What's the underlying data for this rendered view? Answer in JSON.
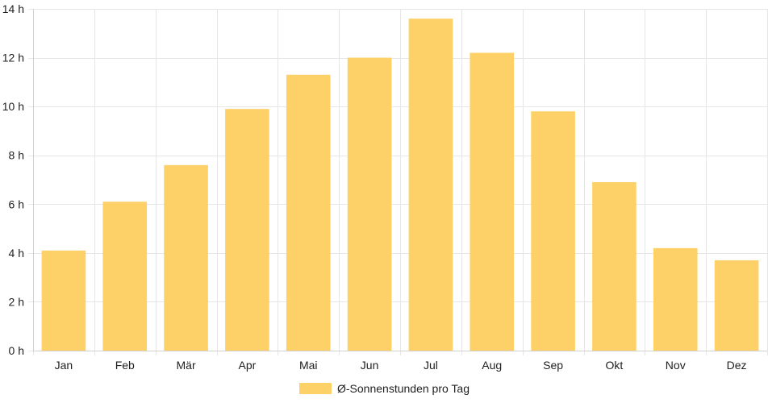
{
  "chart_data": {
    "type": "bar",
    "categories": [
      "Jan",
      "Feb",
      "Mär",
      "Apr",
      "Mai",
      "Jun",
      "Jul",
      "Aug",
      "Sep",
      "Okt",
      "Nov",
      "Dez"
    ],
    "series": [
      {
        "name": "Ø-Sonnenstunden pro Tag",
        "values": [
          4.1,
          6.1,
          7.6,
          9.9,
          11.3,
          12.0,
          13.6,
          12.2,
          9.8,
          6.9,
          4.2,
          3.7
        ],
        "color": "#fdd068"
      }
    ],
    "title": "",
    "xlabel": "",
    "ylabel": "",
    "ylim": [
      0,
      14
    ],
    "yticks": [
      {
        "value": 0,
        "label": "0 h"
      },
      {
        "value": 2,
        "label": "2 h"
      },
      {
        "value": 4,
        "label": "4 h"
      },
      {
        "value": 6,
        "label": "6 h"
      },
      {
        "value": 8,
        "label": "8 h"
      },
      {
        "value": 10,
        "label": "10 h"
      },
      {
        "value": 12,
        "label": "12 h"
      },
      {
        "value": 14,
        "label": "14 h"
      }
    ],
    "grid": true,
    "legend_position": "bottom-center"
  },
  "colors": {
    "grid": "#e6e6e6",
    "axis": "#d0d0d0"
  }
}
